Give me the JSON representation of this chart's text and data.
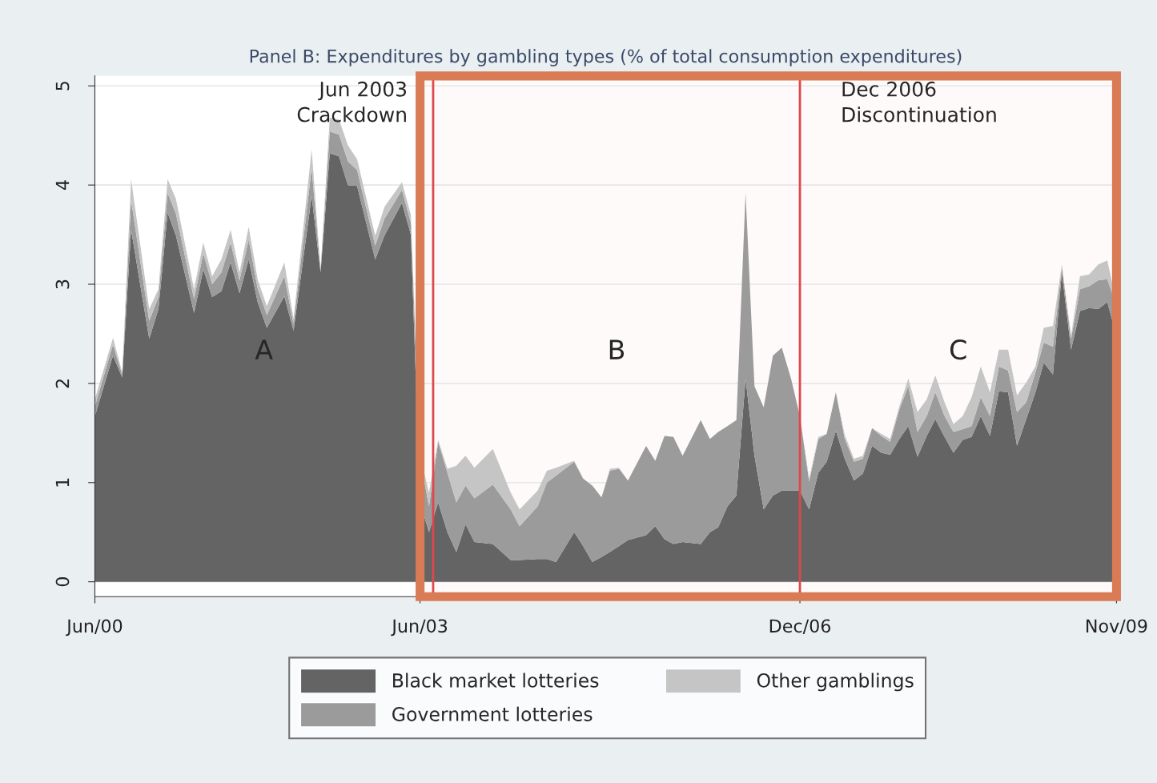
{
  "chart_data": {
    "type": "area",
    "stacked": true,
    "title": "Panel B: Expenditures by gambling types (% of total consumption expenditures)",
    "x": [
      "2000-06",
      "2000-08",
      "2000-09",
      "2000-10",
      "2000-12",
      "2001-01",
      "2001-02",
      "2001-03",
      "2001-05",
      "2001-06",
      "2001-07",
      "2001-08",
      "2001-09",
      "2001-10",
      "2001-11",
      "2001-12",
      "2002-01",
      "2002-03",
      "2002-04",
      "2002-06",
      "2002-07",
      "2002-08",
      "2002-09",
      "2002-10",
      "2002-11",
      "2003-01",
      "2003-02",
      "2003-04",
      "2003-05",
      "2003-06",
      "2003-07",
      "2003-08",
      "2003-09",
      "2003-10",
      "2003-11",
      "2003-12",
      "2004-02",
      "2004-04",
      "2004-05",
      "2004-07",
      "2004-08",
      "2004-09",
      "2004-11",
      "2004-12",
      "2005-01",
      "2005-02",
      "2005-03",
      "2005-04",
      "2005-05",
      "2005-07",
      "2005-08",
      "2005-09",
      "2005-10",
      "2005-11",
      "2006-01",
      "2006-02",
      "2006-03",
      "2006-04",
      "2006-05",
      "2006-06",
      "2006-07",
      "2006-08",
      "2006-09",
      "2006-10",
      "2006-11",
      "2006-12",
      "2007-01",
      "2007-02",
      "2007-03",
      "2007-04",
      "2007-05",
      "2007-06",
      "2007-07",
      "2007-08",
      "2007-09",
      "2007-10",
      "2007-11",
      "2007-12",
      "2008-01",
      "2008-02",
      "2008-03",
      "2008-04",
      "2008-05",
      "2008-06",
      "2008-07",
      "2008-08",
      "2008-09",
      "2008-10",
      "2008-11",
      "2008-12",
      "2009-01",
      "2009-02",
      "2009-03",
      "2009-04",
      "2009-05",
      "2009-06",
      "2009-07",
      "2009-08",
      "2009-09",
      "2009-10",
      "2009-11"
    ],
    "series": [
      {
        "name": "Black market lotteries",
        "color": "#646464",
        "values": [
          1.67,
          2.28,
          2.06,
          3.55,
          2.45,
          2.75,
          3.72,
          3.49,
          2.71,
          3.15,
          2.87,
          2.93,
          3.22,
          2.91,
          3.25,
          2.82,
          2.56,
          2.88,
          2.53,
          3.89,
          3.12,
          4.32,
          4.29,
          4.0,
          3.99,
          3.25,
          3.49,
          3.82,
          3.5,
          0.8,
          0.5,
          0.8,
          0.5,
          0.3,
          0.58,
          0.4,
          0.38,
          0.22,
          0.22,
          0.23,
          0.23,
          0.2,
          0.5,
          0.36,
          0.2,
          0.25,
          0.3,
          0.36,
          0.42,
          0.47,
          0.56,
          0.43,
          0.38,
          0.4,
          0.38,
          0.5,
          0.55,
          0.76,
          0.87,
          2.05,
          1.27,
          0.73,
          0.87,
          0.92,
          0.92,
          0.92,
          0.73,
          1.1,
          1.21,
          1.52,
          1.24,
          1.02,
          1.09,
          1.37,
          1.3,
          1.28,
          1.44,
          1.57,
          1.26,
          1.47,
          1.64,
          1.46,
          1.3,
          1.43,
          1.46,
          1.67,
          1.47,
          1.92,
          1.91,
          1.37,
          1.64,
          1.91,
          2.21,
          2.09,
          3.12,
          2.34,
          2.73,
          2.76,
          2.75,
          2.82,
          2.48
        ]
      },
      {
        "name": "Government lotteries",
        "color": "#9b9b9b",
        "values": [
          0.1,
          0.11,
          0.03,
          0.3,
          0.18,
          0.12,
          0.2,
          0.22,
          0.14,
          0.16,
          0.13,
          0.19,
          0.2,
          0.13,
          0.2,
          0.14,
          0.13,
          0.2,
          0.07,
          0.28,
          0.02,
          0.22,
          0.22,
          0.24,
          0.16,
          0.14,
          0.17,
          0.13,
          0.12,
          0.44,
          0.26,
          0.61,
          0.6,
          0.5,
          0.39,
          0.44,
          0.6,
          0.51,
          0.34,
          0.53,
          0.77,
          0.87,
          0.71,
          0.68,
          0.77,
          0.6,
          0.82,
          0.78,
          0.6,
          0.9,
          0.66,
          1.04,
          1.08,
          0.87,
          1.25,
          0.94,
          0.96,
          0.81,
          0.76,
          1.87,
          0.7,
          1.03,
          1.41,
          1.44,
          1.13,
          0.75,
          0.28,
          0.34,
          0.28,
          0.39,
          0.2,
          0.19,
          0.15,
          0.18,
          0.17,
          0.13,
          0.3,
          0.4,
          0.25,
          0.2,
          0.27,
          0.21,
          0.21,
          0.11,
          0.11,
          0.19,
          0.2,
          0.25,
          0.22,
          0.34,
          0.17,
          0.2,
          0.2,
          0.28,
          0.06,
          0.11,
          0.22,
          0.22,
          0.29,
          0.23,
          0.3
        ]
      },
      {
        "name": "Other gamblings",
        "color": "#c5c5c5",
        "values": [
          0.07,
          0.07,
          0.02,
          0.21,
          0.12,
          0.08,
          0.14,
          0.15,
          0.1,
          0.11,
          0.08,
          0.13,
          0.13,
          0.08,
          0.13,
          0.09,
          0.09,
          0.14,
          0.05,
          0.19,
          0.01,
          0.14,
          0.15,
          0.16,
          0.11,
          0.1,
          0.12,
          0.08,
          0.08,
          0.03,
          0.14,
          0.02,
          0.04,
          0.37,
          0.3,
          0.31,
          0.36,
          0.17,
          0.17,
          0.16,
          0.12,
          0.08,
          0.01,
          0,
          0,
          0,
          0.02,
          0.01,
          0,
          0,
          0,
          0,
          0,
          0,
          0,
          0,
          0,
          0,
          0,
          0,
          0,
          0,
          0,
          0,
          0,
          0,
          0.03,
          0.02,
          0,
          0,
          0.04,
          0.03,
          0.03,
          0,
          0.02,
          0.03,
          0.03,
          0.08,
          0.2,
          0.17,
          0.17,
          0.14,
          0.08,
          0.13,
          0.29,
          0.31,
          0.24,
          0.17,
          0.21,
          0.17,
          0.2,
          0.06,
          0.15,
          0.21,
          0.02,
          0.03,
          0.13,
          0.12,
          0.16,
          0.19,
          0.03
        ]
      }
    ],
    "xlim": [
      "2000-06",
      "2009-11"
    ],
    "xticks": [
      {
        "value": "2000-06",
        "label": "Jun/00"
      },
      {
        "value": "2003-06",
        "label": "Jun/03"
      },
      {
        "value": "2006-12",
        "label": "Dec/06"
      },
      {
        "value": "2009-11",
        "label": "Nov/09"
      }
    ],
    "ylim": [
      -0.15,
      5.1
    ],
    "yticks": [
      0,
      1,
      2,
      3,
      4,
      5
    ],
    "grid": "y",
    "legend": "bottom",
    "ref_lines": [
      {
        "axis": "x",
        "value": "2003-07-15",
        "label": "Jun 2003\nCrackdown",
        "color": "#e0474c"
      },
      {
        "axis": "x",
        "value": "2006-12",
        "label": "Dec 2006\nDiscontinuation",
        "color": "#e0474c"
      }
    ],
    "bands": [
      {
        "axis": "x",
        "from": "2003-06",
        "to": "2009-11",
        "color": "#d97b55"
      }
    ],
    "annotations": [
      "A",
      "B",
      "C"
    ]
  }
}
